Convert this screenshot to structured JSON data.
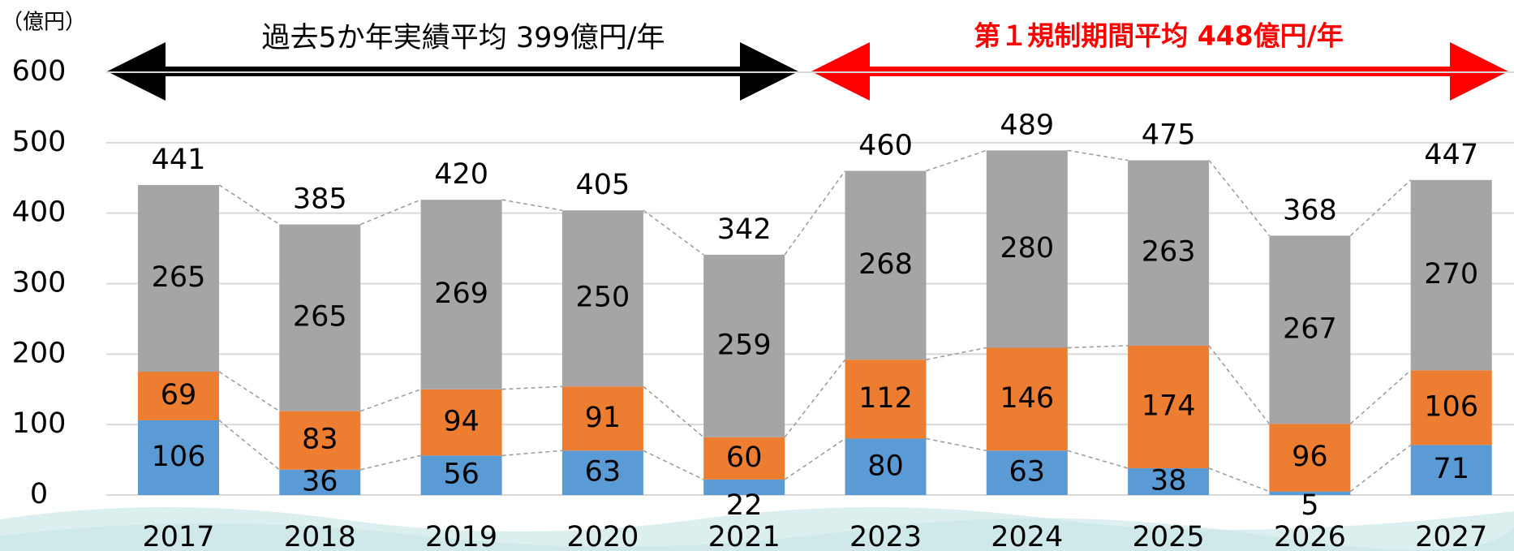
{
  "chart_data": {
    "type": "stacked_bar",
    "unit_label": "（億円）",
    "annotations": [
      "過去5か年実績平均 399億円/年",
      "第１規制期間平均 448億円/年"
    ],
    "categories": [
      "2017",
      "2018",
      "2019",
      "2020",
      "2021",
      "2023",
      "2024",
      "2025",
      "2026",
      "2027"
    ],
    "series": [
      {
        "color": "#5b9bd5",
        "values": [
          106,
          36,
          56,
          63,
          22,
          80,
          63,
          38,
          5,
          71
        ]
      },
      {
        "color": "#ed7d31",
        "values": [
          69,
          83,
          94,
          91,
          60,
          112,
          146,
          174,
          96,
          106
        ]
      },
      {
        "color": "#a5a5a5",
        "values": [
          265,
          265,
          269,
          250,
          259,
          268,
          280,
          263,
          267,
          270
        ]
      }
    ],
    "totals": [
      441,
      385,
      420,
      405,
      342,
      460,
      489,
      475,
      368,
      447
    ],
    "ylim": [
      0,
      600
    ],
    "yticks": [
      0,
      100,
      200,
      300,
      400,
      500,
      600
    ],
    "grid": true
  }
}
